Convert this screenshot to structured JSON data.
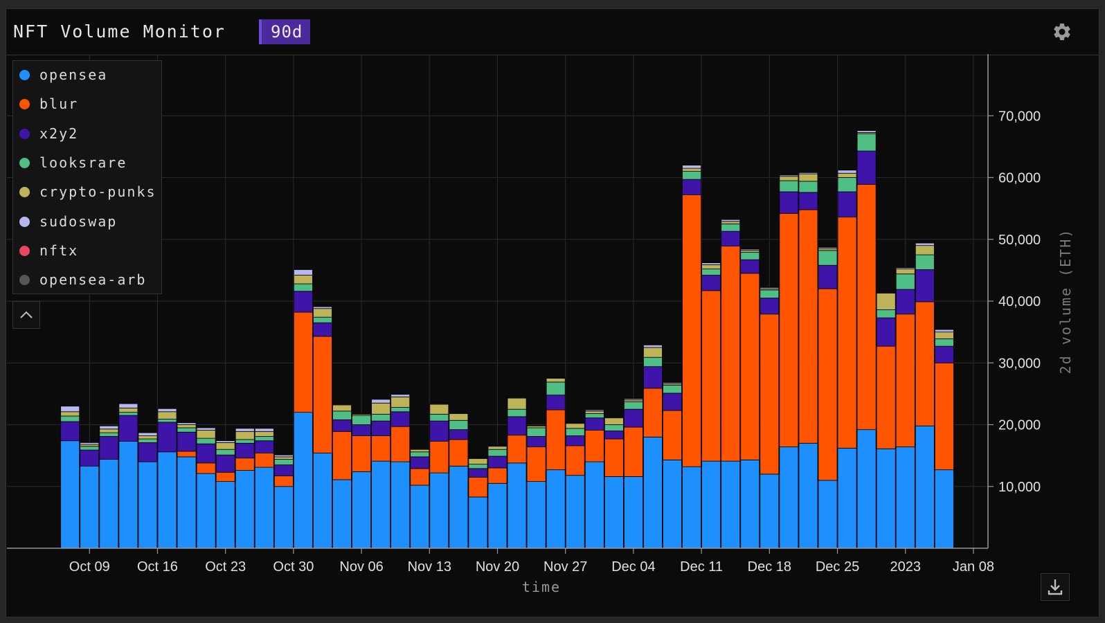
{
  "app": {
    "title": "NFT Volume Monitor",
    "range_badge": "90d",
    "settings_icon": "gear-icon",
    "collapse_icon": "chevron-up-icon",
    "download_icon": "download-icon"
  },
  "colors": {
    "opensea": "#1e8fff",
    "blur": "#ff5400",
    "x2y2": "#3f14a8",
    "looksrare": "#4fbf86",
    "crypto-punks": "#bfb35a",
    "sudoswap": "#b8b8f0",
    "nftx": "#e8475f",
    "opensea-arb": "#555555"
  },
  "chart_data": {
    "type": "bar",
    "stacked": true,
    "xlabel": "time",
    "ylabel": "2d volume (ETH)",
    "ylim": [
      0,
      80000
    ],
    "yticks": [
      10000,
      20000,
      30000,
      40000,
      50000,
      60000,
      70000
    ],
    "ytick_labels": [
      "10,000",
      "20,000",
      "30,000",
      "40,000",
      "50,000",
      "60,000",
      "70,000"
    ],
    "xticks": [
      {
        "label": "Oct 09",
        "day": 8
      },
      {
        "label": "Oct 16",
        "day": 15
      },
      {
        "label": "Oct 23",
        "day": 22
      },
      {
        "label": "Oct 30",
        "day": 29
      },
      {
        "label": "Nov 06",
        "day": 36
      },
      {
        "label": "Nov 13",
        "day": 43
      },
      {
        "label": "Nov 20",
        "day": 50
      },
      {
        "label": "Nov 27",
        "day": 57
      },
      {
        "label": "Dec 04",
        "day": 64
      },
      {
        "label": "Dec 11",
        "day": 71
      },
      {
        "label": "Dec 18",
        "day": 78
      },
      {
        "label": "Dec 25",
        "day": 85
      },
      {
        "label": "2023",
        "day": 92
      },
      {
        "label": "Jan 08",
        "day": 99
      }
    ],
    "x_day_range": [
      -0.5,
      100.5
    ],
    "bar_start_day": 6,
    "bar_step_days": 2,
    "legend": [
      "opensea",
      "blur",
      "x2y2",
      "looksrare",
      "crypto-punks",
      "sudoswap",
      "nftx",
      "opensea-arb"
    ],
    "series": [
      {
        "name": "opensea",
        "values": [
          17400,
          13300,
          14400,
          17300,
          14000,
          15600,
          14800,
          12100,
          10800,
          12600,
          13100,
          10000,
          22000,
          15400,
          11100,
          12400,
          14100,
          14000,
          10200,
          12200,
          13300,
          8300,
          10500,
          13800,
          10800,
          12700,
          11800,
          14000,
          11600,
          11600,
          18000,
          14300,
          13200,
          14100,
          14100,
          14300,
          12000,
          16400,
          17000,
          11000,
          16200,
          19200,
          16100,
          16400,
          19800,
          12700
        ]
      },
      {
        "name": "blur",
        "values": [
          0,
          0,
          0,
          0,
          0,
          0,
          900,
          1700,
          1500,
          2000,
          2300,
          1700,
          16200,
          18900,
          7800,
          5800,
          4100,
          5700,
          2700,
          5100,
          4300,
          3200,
          2500,
          4500,
          5600,
          9700,
          4800,
          5100,
          6100,
          8000,
          7900,
          8000,
          44000,
          27600,
          34800,
          30200,
          25900,
          37800,
          37800,
          31000,
          37400,
          39700,
          16600,
          21500,
          20100,
          17300
        ]
      },
      {
        "name": "x2y2",
        "values": [
          3100,
          2600,
          3700,
          4200,
          3100,
          4800,
          3100,
          3100,
          2800,
          2400,
          2000,
          1800,
          3400,
          2200,
          1900,
          1800,
          2400,
          2400,
          1900,
          3300,
          1600,
          1400,
          1900,
          3000,
          1700,
          2400,
          1600,
          2000,
          1300,
          2900,
          3500,
          2800,
          2500,
          2500,
          2400,
          2200,
          2600,
          3500,
          2800,
          3800,
          4100,
          5400,
          4600,
          4000,
          5200,
          2700
        ]
      },
      {
        "name": "looksrare",
        "values": [
          900,
          600,
          600,
          500,
          600,
          500,
          700,
          900,
          900,
          600,
          700,
          900,
          1200,
          900,
          1400,
          1500,
          1100,
          700,
          800,
          1100,
          1500,
          700,
          1100,
          1200,
          1400,
          2100,
          1200,
          700,
          1000,
          1200,
          1500,
          1300,
          1300,
          1000,
          1200,
          1200,
          1300,
          1800,
          1800,
          2400,
          2300,
          2800,
          1300,
          2500,
          2400,
          1200
        ]
      },
      {
        "name": "crypto-punks",
        "values": [
          700,
          300,
          600,
          700,
          500,
          1200,
          500,
          1300,
          1100,
          1300,
          800,
          400,
          1400,
          1400,
          1000,
          200,
          1800,
          1700,
          400,
          1600,
          1100,
          900,
          500,
          1800,
          300,
          600,
          800,
          400,
          1100,
          300,
          1600,
          200,
          500,
          700,
          400,
          300,
          200,
          700,
          1200,
          300,
          700,
          200,
          2700,
          800,
          1500,
          1100
        ]
      },
      {
        "name": "sudoswap",
        "values": [
          900,
          300,
          500,
          700,
          500,
          500,
          300,
          400,
          300,
          500,
          500,
          300,
          900,
          300,
          100,
          100,
          600,
          400,
          100,
          100,
          100,
          100,
          100,
          100,
          100,
          100,
          100,
          200,
          100,
          200,
          400,
          200,
          500,
          300,
          300,
          200,
          200,
          200,
          200,
          200,
          500,
          300,
          100,
          200,
          400,
          400
        ]
      },
      {
        "name": "nftx",
        "values": [
          0,
          0,
          0,
          0,
          0,
          0,
          0,
          0,
          0,
          0,
          0,
          0,
          0,
          0,
          0,
          0,
          0,
          0,
          0,
          0,
          0,
          0,
          0,
          0,
          0,
          0,
          0,
          0,
          0,
          0,
          0,
          0,
          0,
          0,
          0,
          0,
          0,
          0,
          0,
          0,
          0,
          0,
          0,
          0,
          0,
          0
        ]
      },
      {
        "name": "opensea-arb",
        "values": [
          0,
          0,
          0,
          0,
          0,
          0,
          0,
          0,
          0,
          0,
          0,
          0,
          0,
          0,
          0,
          0,
          0,
          0,
          0,
          0,
          0,
          0,
          0,
          0,
          0,
          0,
          0,
          0,
          0,
          0,
          0,
          0,
          0,
          0,
          0,
          0,
          0,
          0,
          0,
          0,
          0,
          0,
          0,
          0,
          0,
          0
        ]
      }
    ]
  }
}
